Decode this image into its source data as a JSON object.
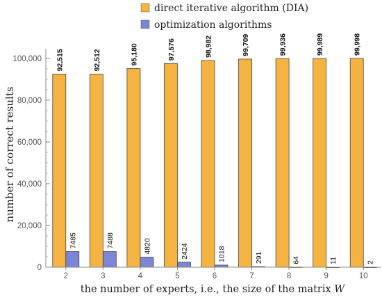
{
  "chart_data": {
    "type": "bar",
    "title": "",
    "xlabel": "the number of experts, i.e., the size of the matrix W",
    "ylabel": "number of correct results",
    "categories": [
      "2",
      "3",
      "4",
      "5",
      "6",
      "7",
      "8",
      "9",
      "10"
    ],
    "ylim": [
      0,
      104000
    ],
    "yticks": [
      0,
      20000,
      40000,
      60000,
      80000,
      100000
    ],
    "ytick_labels": [
      "0",
      "20,000",
      "40,000",
      "60,000",
      "80,000",
      "100,000"
    ],
    "grid": false,
    "legend_position": "top",
    "series": [
      {
        "name": "direct iterative algorithm (DIA)",
        "color": "#F5B342",
        "values": [
          92515,
          92512,
          95180,
          97576,
          98982,
          99709,
          99936,
          99989,
          99998
        ],
        "labels": [
          "92,515",
          "92,512",
          "95,180",
          "97,576",
          "98,982",
          "99,709",
          "99,936",
          "99,989",
          "99,998"
        ]
      },
      {
        "name": "optimization algorithms",
        "color": "#7B86D6",
        "values": [
          7485,
          7488,
          4820,
          2424,
          1018,
          291,
          64,
          11,
          2
        ],
        "labels": [
          "7485",
          "7488",
          "4820",
          "2424",
          "1018",
          "291",
          "64",
          "11",
          "2"
        ]
      }
    ]
  }
}
